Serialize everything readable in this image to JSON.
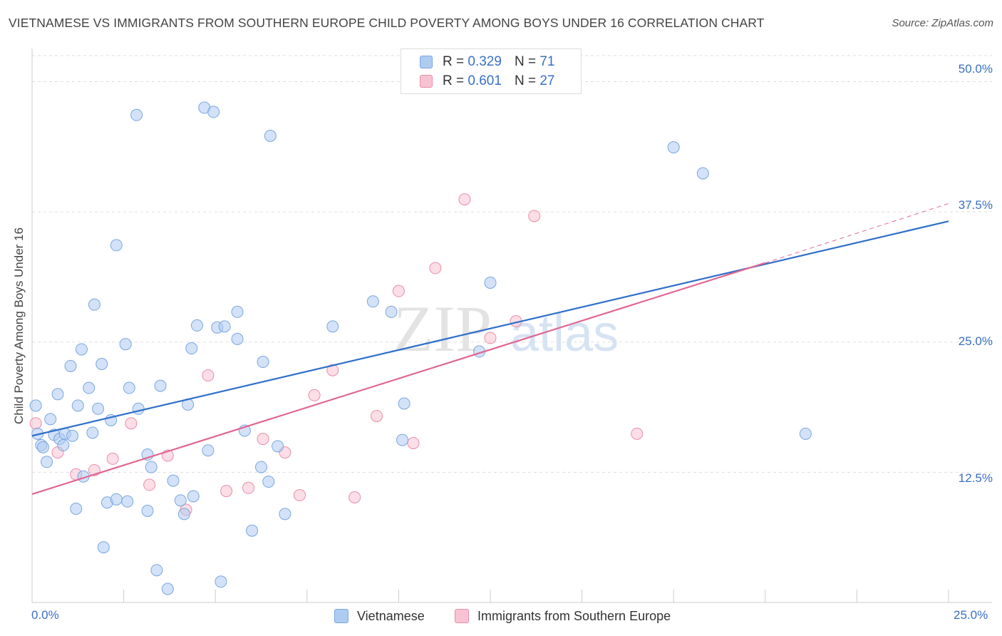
{
  "title": "VIETNAMESE VS IMMIGRANTS FROM SOUTHERN EUROPE CHILD POVERTY AMONG BOYS UNDER 16 CORRELATION CHART",
  "source": "Source: ZipAtlas.com",
  "watermark": {
    "zip": "ZIP",
    "atlas": "atlas"
  },
  "legend": {
    "series1": {
      "r_label": "R = ",
      "r_value": "0.329",
      "n_label": "N = ",
      "n_value": "71"
    },
    "series2": {
      "r_label": "R = ",
      "r_value": "0.601",
      "n_label": "N = ",
      "n_value": "27"
    }
  },
  "bottom_legend": {
    "series1": "Vietnamese",
    "series2": "Immigrants from Southern Europe"
  },
  "colors": {
    "blue_fill": "#aecbf2",
    "blue_stroke": "#7aa6de",
    "blue_line": "#2f6fc9",
    "pink_fill": "#f7c3d2",
    "pink_stroke": "#e98daa",
    "pink_line": "#e06792",
    "tick_text": "#3a6fc4",
    "grid": "#dddddd"
  },
  "chart_data": {
    "type": "scatter",
    "title": "VIETNAMESE VS IMMIGRANTS FROM SOUTHERN EUROPE CHILD POVERTY AMONG BOYS UNDER 16 CORRELATION CHART",
    "xlabel": "",
    "ylabel": "Child Poverty Among Boys Under 16",
    "xlim": [
      0,
      25
    ],
    "ylim": [
      0,
      52.5
    ],
    "x_tick_labels": [
      "0.0%",
      "25.0%"
    ],
    "y_tick_labels": [
      "12.5%",
      "25.0%",
      "37.5%",
      "50.0%"
    ],
    "y_tick_values": [
      12.5,
      25.0,
      37.5,
      50.0
    ],
    "grid": true,
    "legend_position": "top-center",
    "series": [
      {
        "name": "Vietnamese",
        "r": 0.329,
        "n": 71,
        "trend": {
          "x": [
            0,
            25
          ],
          "y": [
            16.0,
            36.6
          ]
        },
        "points": [
          [
            0.1,
            18.9
          ],
          [
            0.15,
            16.2
          ],
          [
            0.25,
            15.1
          ],
          [
            0.3,
            14.9
          ],
          [
            0.4,
            13.5
          ],
          [
            0.5,
            17.6
          ],
          [
            0.6,
            16.1
          ],
          [
            0.7,
            20.0
          ],
          [
            0.75,
            15.7
          ],
          [
            0.85,
            15.1
          ],
          [
            0.9,
            16.2
          ],
          [
            1.05,
            22.7
          ],
          [
            1.1,
            16.0
          ],
          [
            1.2,
            9.0
          ],
          [
            1.25,
            18.9
          ],
          [
            1.35,
            24.3
          ],
          [
            1.4,
            12.1
          ],
          [
            1.55,
            20.6
          ],
          [
            1.65,
            16.3
          ],
          [
            1.7,
            28.6
          ],
          [
            1.8,
            18.6
          ],
          [
            1.9,
            22.9
          ],
          [
            1.95,
            5.3
          ],
          [
            2.05,
            9.6
          ],
          [
            2.15,
            17.5
          ],
          [
            2.3,
            9.9
          ],
          [
            2.3,
            34.3
          ],
          [
            2.55,
            24.8
          ],
          [
            2.6,
            9.7
          ],
          [
            2.65,
            20.6
          ],
          [
            2.85,
            46.8
          ],
          [
            2.9,
            18.6
          ],
          [
            3.15,
            14.2
          ],
          [
            3.15,
            8.8
          ],
          [
            3.25,
            13.0
          ],
          [
            3.4,
            3.1
          ],
          [
            3.5,
            20.8
          ],
          [
            3.7,
            1.3
          ],
          [
            3.85,
            11.7
          ],
          [
            4.05,
            9.8
          ],
          [
            4.15,
            8.5
          ],
          [
            4.25,
            19.0
          ],
          [
            4.35,
            24.4
          ],
          [
            4.4,
            10.2
          ],
          [
            4.5,
            26.6
          ],
          [
            4.7,
            47.5
          ],
          [
            4.8,
            14.6
          ],
          [
            4.95,
            47.1
          ],
          [
            5.05,
            26.4
          ],
          [
            5.15,
            2.0
          ],
          [
            5.25,
            26.5
          ],
          [
            5.6,
            27.9
          ],
          [
            5.6,
            25.3
          ],
          [
            5.8,
            16.5
          ],
          [
            6.0,
            6.9
          ],
          [
            6.25,
            13.0
          ],
          [
            6.3,
            23.1
          ],
          [
            6.45,
            11.6
          ],
          [
            6.5,
            44.8
          ],
          [
            6.7,
            15.0
          ],
          [
            6.9,
            8.5
          ],
          [
            8.2,
            26.5
          ],
          [
            9.3,
            28.9
          ],
          [
            9.8,
            27.9
          ],
          [
            10.1,
            15.6
          ],
          [
            10.15,
            19.1
          ],
          [
            12.2,
            24.1
          ],
          [
            12.5,
            30.7
          ],
          [
            17.5,
            43.7
          ],
          [
            18.3,
            41.2
          ],
          [
            21.1,
            16.2
          ]
        ]
      },
      {
        "name": "Immigrants from Southern Europe",
        "r": 0.601,
        "n": 27,
        "trend": {
          "x": [
            0,
            20.0
          ],
          "y": [
            10.4,
            32.6
          ]
        },
        "trend_dashed": {
          "x": [
            20.0,
            25
          ],
          "y": [
            32.6,
            38.3
          ]
        },
        "points": [
          [
            0.1,
            17.2
          ],
          [
            0.7,
            14.4
          ],
          [
            1.2,
            12.3
          ],
          [
            1.7,
            12.7
          ],
          [
            2.2,
            13.8
          ],
          [
            2.7,
            17.2
          ],
          [
            3.2,
            11.3
          ],
          [
            3.7,
            14.1
          ],
          [
            4.2,
            8.9
          ],
          [
            4.8,
            21.8
          ],
          [
            5.3,
            10.7
          ],
          [
            5.9,
            11.0
          ],
          [
            6.3,
            15.7
          ],
          [
            6.9,
            14.4
          ],
          [
            7.3,
            10.3
          ],
          [
            7.7,
            19.9
          ],
          [
            8.2,
            22.3
          ],
          [
            8.8,
            10.1
          ],
          [
            9.4,
            17.9
          ],
          [
            10.0,
            29.9
          ],
          [
            10.4,
            15.3
          ],
          [
            11.0,
            32.1
          ],
          [
            11.8,
            38.7
          ],
          [
            12.5,
            25.4
          ],
          [
            13.2,
            27.0
          ],
          [
            13.7,
            37.1
          ],
          [
            16.5,
            16.2
          ]
        ]
      }
    ]
  },
  "x_ticks": {
    "left": "0.0%",
    "right": "25.0%"
  }
}
